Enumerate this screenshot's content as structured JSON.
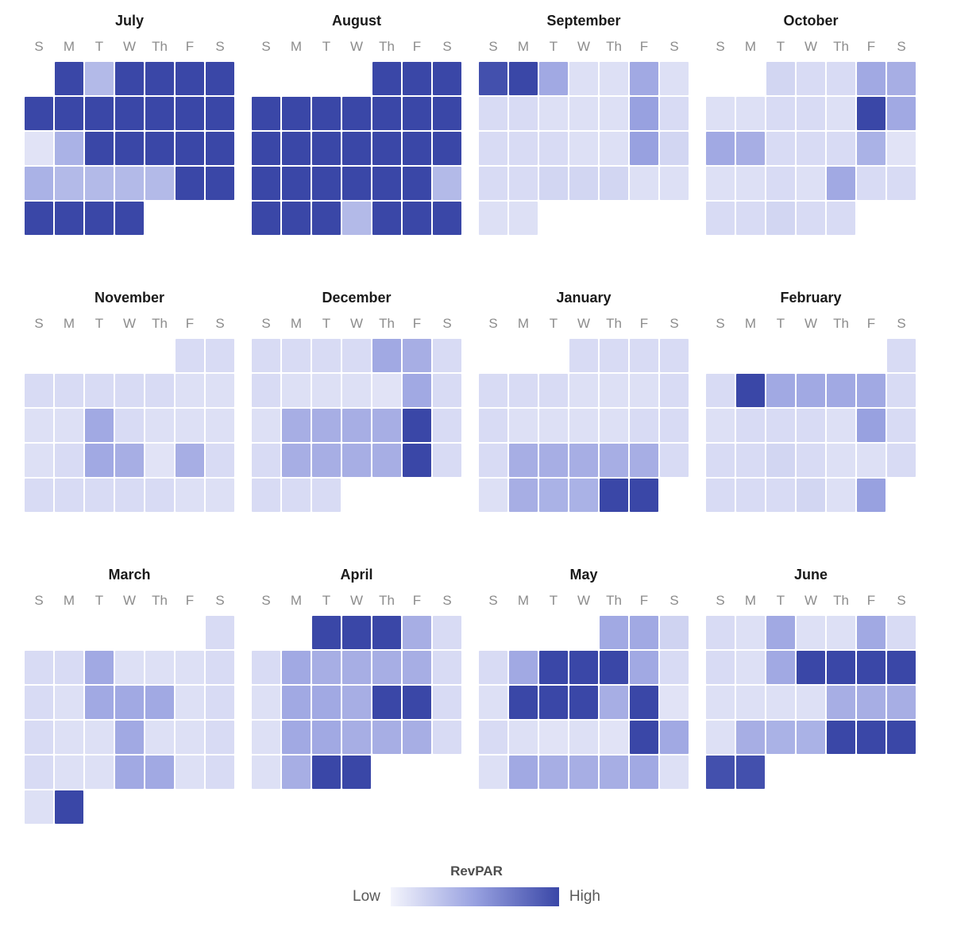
{
  "page": {
    "background": "#ffffff"
  },
  "legend": {
    "title": "RevPAR",
    "low_label": "Low",
    "high_label": "High"
  },
  "colors": {
    "month_title_text": "#1a1a1a",
    "weekday_text": "#8c8c8c",
    "legend_text": "#595959"
  },
  "chart_data": {
    "type": "heatmap",
    "title": "RevPAR",
    "subtitle": "",
    "legend_position": "bottom-center",
    "value_scale": {
      "min": 0,
      "max": 1,
      "min_label": "Low",
      "max_label": "High"
    },
    "weekday_labels": [
      "S",
      "M",
      "T",
      "W",
      "Th",
      "F",
      "S"
    ],
    "color_scale": {
      "stops": [
        "#f3f4fc",
        "#98a1e0",
        "#3a47a7"
      ],
      "positions": [
        0,
        0.5,
        1
      ]
    },
    "months": [
      {
        "name": "July",
        "weeks": [
          [
            null,
            1,
            0.35,
            1,
            1,
            1,
            1
          ],
          [
            1,
            1,
            1,
            1,
            1,
            1,
            1
          ],
          [
            0.1,
            0.4,
            1,
            1,
            1,
            1,
            1
          ],
          [
            0.4,
            0.35,
            0.35,
            0.35,
            0.35,
            1,
            1
          ],
          [
            1,
            1,
            1,
            1,
            null,
            null,
            null
          ]
        ]
      },
      {
        "name": "August",
        "weeks": [
          [
            null,
            null,
            null,
            null,
            1,
            1,
            1
          ],
          [
            1,
            1,
            1,
            1,
            1,
            1,
            1
          ],
          [
            1,
            1,
            1,
            1,
            1,
            1,
            1
          ],
          [
            1,
            1,
            1,
            1,
            1,
            1,
            0.35
          ],
          [
            1,
            1,
            1,
            0.35,
            1,
            1,
            1
          ]
        ]
      },
      {
        "name": "September",
        "weeks": [
          [
            0.95,
            1,
            0.45,
            0.12,
            0.12,
            0.45,
            0.12
          ],
          [
            0.15,
            0.15,
            0.12,
            0.12,
            0.12,
            0.5,
            0.15
          ],
          [
            0.15,
            0.15,
            0.15,
            0.12,
            0.12,
            0.5,
            0.18
          ],
          [
            0.15,
            0.15,
            0.18,
            0.18,
            0.18,
            0.12,
            0.12
          ],
          [
            0.12,
            0.12,
            null,
            null,
            null,
            null,
            null
          ]
        ]
      },
      {
        "name": "October",
        "weeks": [
          [
            null,
            null,
            0.18,
            0.15,
            0.15,
            0.45,
            0.42
          ],
          [
            0.12,
            0.12,
            0.15,
            0.15,
            0.12,
            1,
            0.45
          ],
          [
            0.45,
            0.42,
            0.15,
            0.15,
            0.15,
            0.4,
            0.1
          ],
          [
            0.12,
            0.12,
            0.15,
            0.12,
            0.45,
            0.15,
            0.15
          ],
          [
            0.15,
            0.15,
            0.18,
            0.15,
            0.15,
            null,
            null
          ]
        ]
      },
      {
        "name": "November",
        "weeks": [
          [
            null,
            null,
            null,
            null,
            null,
            0.15,
            0.15
          ],
          [
            0.15,
            0.15,
            0.15,
            0.15,
            0.15,
            0.12,
            0.12
          ],
          [
            0.12,
            0.12,
            0.45,
            0.15,
            0.12,
            0.12,
            0.12
          ],
          [
            0.12,
            0.15,
            0.45,
            0.42,
            0.1,
            0.42,
            0.15
          ],
          [
            0.15,
            0.15,
            0.15,
            0.15,
            0.15,
            0.12,
            0.12
          ]
        ]
      },
      {
        "name": "December",
        "weeks": [
          [
            0.15,
            0.15,
            0.15,
            0.15,
            0.45,
            0.42,
            0.15
          ],
          [
            0.15,
            0.12,
            0.12,
            0.12,
            0.1,
            0.45,
            0.15
          ],
          [
            0.12,
            0.42,
            0.42,
            0.42,
            0.42,
            1,
            0.15
          ],
          [
            0.15,
            0.42,
            0.42,
            0.42,
            0.42,
            1,
            0.15
          ],
          [
            0.15,
            0.15,
            0.15,
            null,
            null,
            null,
            null
          ]
        ]
      },
      {
        "name": "January",
        "weeks": [
          [
            null,
            null,
            null,
            0.15,
            0.15,
            0.15,
            0.15
          ],
          [
            0.15,
            0.15,
            0.15,
            0.12,
            0.12,
            0.12,
            0.15
          ],
          [
            0.15,
            0.12,
            0.12,
            0.12,
            0.12,
            0.15,
            0.15
          ],
          [
            0.15,
            0.42,
            0.42,
            0.42,
            0.42,
            0.42,
            0.15
          ],
          [
            0.12,
            0.42,
            0.4,
            0.4,
            1,
            1,
            null
          ]
        ]
      },
      {
        "name": "February",
        "weeks": [
          [
            null,
            null,
            null,
            null,
            null,
            null,
            0.15
          ],
          [
            0.15,
            1,
            0.45,
            0.45,
            0.45,
            0.45,
            0.15
          ],
          [
            0.12,
            0.15,
            0.15,
            0.15,
            0.12,
            0.5,
            0.15
          ],
          [
            0.15,
            0.15,
            0.18,
            0.15,
            0.12,
            0.12,
            0.15
          ],
          [
            0.15,
            0.15,
            0.15,
            0.18,
            0.12,
            0.5,
            null
          ]
        ]
      },
      {
        "name": "March",
        "weeks": [
          [
            null,
            null,
            null,
            null,
            null,
            null,
            0.15
          ],
          [
            0.15,
            0.15,
            0.45,
            0.12,
            0.12,
            0.12,
            0.15
          ],
          [
            0.15,
            0.12,
            0.45,
            0.45,
            0.45,
            0.12,
            0.15
          ],
          [
            0.15,
            0.12,
            0.12,
            0.45,
            0.12,
            0.12,
            0.15
          ],
          [
            0.15,
            0.12,
            0.12,
            0.45,
            0.45,
            0.12,
            0.15
          ],
          [
            0.12,
            1,
            null,
            null,
            null,
            null,
            null
          ]
        ]
      },
      {
        "name": "April",
        "weeks": [
          [
            null,
            null,
            1,
            1,
            1,
            0.42,
            0.15
          ],
          [
            0.15,
            0.45,
            0.42,
            0.42,
            0.42,
            0.42,
            0.15
          ],
          [
            0.12,
            0.45,
            0.45,
            0.42,
            1,
            1,
            0.15
          ],
          [
            0.12,
            0.45,
            0.45,
            0.42,
            0.42,
            0.42,
            0.15
          ],
          [
            0.12,
            0.42,
            1,
            1,
            null,
            null,
            null
          ]
        ]
      },
      {
        "name": "May",
        "weeks": [
          [
            null,
            null,
            null,
            null,
            0.45,
            0.45,
            0.2
          ],
          [
            0.15,
            0.45,
            1,
            1,
            1,
            0.45,
            0.15
          ],
          [
            0.12,
            1,
            1,
            1,
            0.42,
            1,
            0.1
          ],
          [
            0.15,
            0.12,
            0.1,
            0.12,
            0.1,
            1,
            0.45
          ],
          [
            0.12,
            0.45,
            0.42,
            0.42,
            0.42,
            0.45,
            0.12
          ]
        ]
      },
      {
        "name": "June",
        "weeks": [
          [
            0.15,
            0.12,
            0.45,
            0.12,
            0.12,
            0.45,
            0.15
          ],
          [
            0.15,
            0.12,
            0.45,
            1,
            1,
            1,
            1
          ],
          [
            0.12,
            0.12,
            0.12,
            0.12,
            0.42,
            0.42,
            0.42
          ],
          [
            0.12,
            0.42,
            0.4,
            0.4,
            1,
            1,
            1
          ],
          [
            0.95,
            0.95,
            null,
            null,
            null,
            null,
            null
          ]
        ]
      }
    ]
  }
}
